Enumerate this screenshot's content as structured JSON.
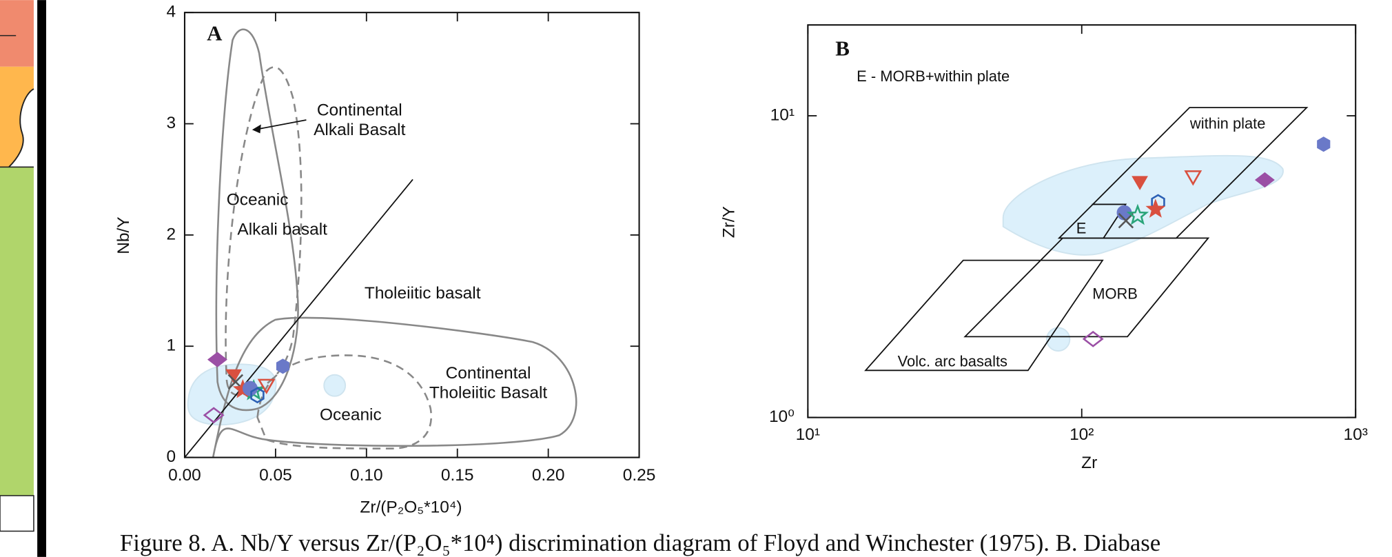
{
  "charts": [
    {
      "type": "scatter",
      "panel": "A",
      "x_label": "Zr/(P₂O₅*10⁴)",
      "y_label": "Nb/Y",
      "xlim": [
        0,
        0.25
      ],
      "ylim": [
        0,
        4
      ],
      "xticks": [
        {
          "value": 0,
          "label": "0.00"
        },
        {
          "value": 0.05,
          "label": "0.05"
        },
        {
          "value": 0.1,
          "label": "0.10"
        },
        {
          "value": 0.15,
          "label": "0.15"
        },
        {
          "value": 0.2,
          "label": "0.20"
        },
        {
          "value": 0.25,
          "label": "0.25"
        }
      ],
      "yticks": [
        0,
        1,
        2,
        3,
        4
      ],
      "annotations": [
        {
          "lines": [
            "Continental",
            "Alkali Basalt"
          ]
        },
        {
          "lines": [
            "Oceanic"
          ]
        },
        {
          "lines": [
            "Alkali basalt"
          ]
        },
        {
          "lines": [
            "Tholeiitic basalt"
          ]
        },
        {
          "lines": [
            "Continental",
            "Tholeiitic Basalt"
          ]
        },
        {
          "lines": [
            "Oceanic"
          ]
        }
      ],
      "series": [
        {
          "marker": "diamond",
          "color": "#9b4fa5",
          "filled": true,
          "x": [
            0.018
          ],
          "values": [
            0.88
          ]
        },
        {
          "marker": "triangle-down",
          "color": "#d9503f",
          "filled": true,
          "x": [
            0.027
          ],
          "values": [
            0.75
          ]
        },
        {
          "marker": "x",
          "color": "#555555",
          "filled": false,
          "x": [
            0.028
          ],
          "values": [
            0.68
          ]
        },
        {
          "marker": "star",
          "color": "#d9503f",
          "filled": true,
          "x": [
            0.032
          ],
          "values": [
            0.61
          ]
        },
        {
          "marker": "star",
          "color": "#2aa57a",
          "filled": false,
          "x": [
            0.038
          ],
          "values": [
            0.6
          ]
        },
        {
          "marker": "circle",
          "color": "#6a79c8",
          "filled": true,
          "x": [
            0.036
          ],
          "values": [
            0.62
          ]
        },
        {
          "marker": "hexagon",
          "color": "#2b5fb4",
          "filled": false,
          "x": [
            0.04
          ],
          "values": [
            0.56
          ]
        },
        {
          "marker": "triangle-down",
          "color": "#d9503f",
          "filled": false,
          "x": [
            0.045
          ],
          "values": [
            0.66
          ]
        },
        {
          "marker": "hexagon",
          "color": "#6a79c8",
          "filled": true,
          "x": [
            0.054
          ],
          "values": [
            0.82
          ]
        },
        {
          "marker": "diamond",
          "color": "#9b4fa5",
          "filled": false,
          "x": [
            0.016
          ],
          "values": [
            0.38
          ]
        }
      ]
    },
    {
      "type": "scatter",
      "panel": "B",
      "x_label": "Zr",
      "y_label": "Zr/Y",
      "log_x": true,
      "log_y": true,
      "xlim": [
        10,
        1000
      ],
      "ylim": [
        1,
        20
      ],
      "xticks": [
        {
          "value": 10,
          "label": "10¹"
        },
        {
          "value": 100,
          "label": "10²"
        },
        {
          "value": 1000,
          "label": "10³"
        }
      ],
      "yticks": [
        {
          "value": 1,
          "label": "10⁰"
        },
        {
          "value": 10,
          "label": "10¹"
        }
      ],
      "annotations": [
        {
          "lines": [
            "E - MORB+within plate"
          ]
        },
        {
          "lines": [
            "within plate"
          ]
        },
        {
          "lines": [
            "E"
          ]
        },
        {
          "lines": [
            "MORB"
          ]
        },
        {
          "lines": [
            "Volc. arc basalts"
          ]
        }
      ],
      "series": [
        {
          "marker": "hexagon",
          "color": "#6a79c8",
          "filled": true,
          "x": [
            764
          ],
          "values": [
            8.05
          ]
        },
        {
          "marker": "diamond",
          "color": "#9b4fa5",
          "filled": true,
          "x": [
            466
          ],
          "values": [
            6.13
          ]
        },
        {
          "marker": "triangle-down",
          "color": "#d9503f",
          "filled": false,
          "x": [
            255
          ],
          "values": [
            6.34
          ]
        },
        {
          "marker": "triangle-down",
          "color": "#d9503f",
          "filled": true,
          "x": [
            163
          ],
          "values": [
            6.09
          ]
        },
        {
          "marker": "hexagon",
          "color": "#2b5fb4",
          "filled": false,
          "x": [
            190
          ],
          "values": [
            5.17
          ]
        },
        {
          "marker": "star",
          "color": "#d9503f",
          "filled": true,
          "x": [
            186
          ],
          "values": [
            4.9
          ]
        },
        {
          "marker": "circle",
          "color": "#6a79c8",
          "filled": true,
          "x": [
            143
          ],
          "values": [
            4.77
          ]
        },
        {
          "marker": "x",
          "color": "#555555",
          "filled": false,
          "x": [
            145
          ],
          "values": [
            4.49
          ]
        },
        {
          "marker": "star",
          "color": "#2aa57a",
          "filled": false,
          "x": [
            160
          ],
          "values": [
            4.67
          ]
        },
        {
          "marker": "diamond",
          "color": "#9b4fa5",
          "filled": false,
          "x": [
            110
          ],
          "values": [
            1.82
          ]
        }
      ]
    }
  ],
  "caption": "Figure 8. A. Nb/Y versus Zr/(P₂O₅*10⁴) discrimination diagram of Floyd and Winchester (1975). B. Diabase"
}
